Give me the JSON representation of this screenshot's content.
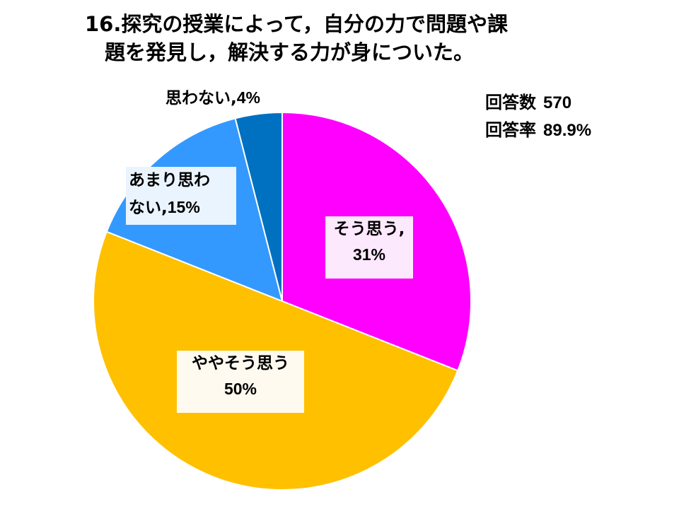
{
  "title": {
    "line1": "16.探究の授業によって，自分の力で問題や課",
    "line2": "題を発見し，解決する力が身についた。"
  },
  "stats": {
    "respondents_label": "回答数",
    "respondents_value": "570",
    "rate_label": "回答率",
    "rate_value": "89.9%"
  },
  "chart_data": {
    "type": "pie",
    "title": "16.探究の授業によって，自分の力で問題や課題を発見し，解決する力が身についた。",
    "start_angle_deg": 0,
    "direction": "clockwise",
    "slices": [
      {
        "label": "そう思う,",
        "value": 31,
        "pct_text": "31%",
        "color": "#ff00ff"
      },
      {
        "label": "ややそう思う",
        "value": 50,
        "pct_text": "50%",
        "color": "#ffc000"
      },
      {
        "label": "あまり思わない,",
        "value": 15,
        "pct_text": "15%",
        "color": "#3399ff"
      },
      {
        "label": "思わない,",
        "value": 4,
        "pct_text": "4%",
        "color": "#0070c0"
      }
    ],
    "amari_line1": "あまり思わ",
    "amari_line2": "ない,"
  }
}
